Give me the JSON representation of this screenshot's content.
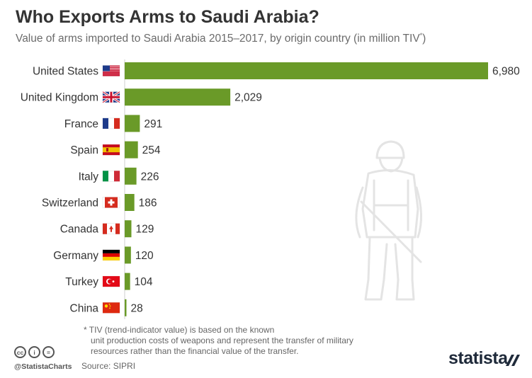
{
  "header": {
    "title": "Who Exports Arms to Saudi Arabia?",
    "subtitle": "Value of arms imported to Saudi Arabia 2015–2017, by origin country (in million TIV",
    "subtitle_sup": "*",
    "subtitle_end": ")"
  },
  "chart_data": {
    "type": "bar",
    "orientation": "horizontal",
    "title": "Who Exports Arms to Saudi Arabia?",
    "subtitle": "Value of arms imported to Saudi Arabia 2015–2017, by origin country (in million TIV*)",
    "categories": [
      "United States",
      "United Kingdom",
      "France",
      "Spain",
      "Italy",
      "Switzerland",
      "Canada",
      "Germany",
      "Turkey",
      "China"
    ],
    "values": [
      6980,
      2029,
      291,
      254,
      226,
      186,
      129,
      120,
      104,
      28
    ],
    "value_labels": [
      "6,980",
      "2,029",
      "291",
      "254",
      "226",
      "186",
      "129",
      "120",
      "104",
      "28"
    ],
    "flags": [
      "flag-us-icon",
      "flag-gb-icon",
      "flag-fr-icon",
      "flag-es-icon",
      "flag-it-icon",
      "flag-ch-icon",
      "flag-ca-icon",
      "flag-de-icon",
      "flag-tr-icon",
      "flag-cn-icon"
    ],
    "xlim": [
      0,
      6980
    ],
    "grid": false,
    "legend": "none",
    "bar_color": "#6a9a28"
  },
  "footnote": {
    "line1": "* TIV (trend-indicator value) is based on the known",
    "line2": "unit production costs of weapons and represent the transfer of military",
    "line3": "resources rather than the financial value of the transfer."
  },
  "footer": {
    "handle": "@StatistaCharts",
    "source": "Source: SIPRI",
    "brand": "statista",
    "cc_icons": [
      "cc-icon",
      "by-icon",
      "nd-icon"
    ],
    "cc_labels": [
      "cc",
      "i",
      "="
    ]
  },
  "decoration": {
    "illustration": "soldier-silhouette-icon"
  }
}
